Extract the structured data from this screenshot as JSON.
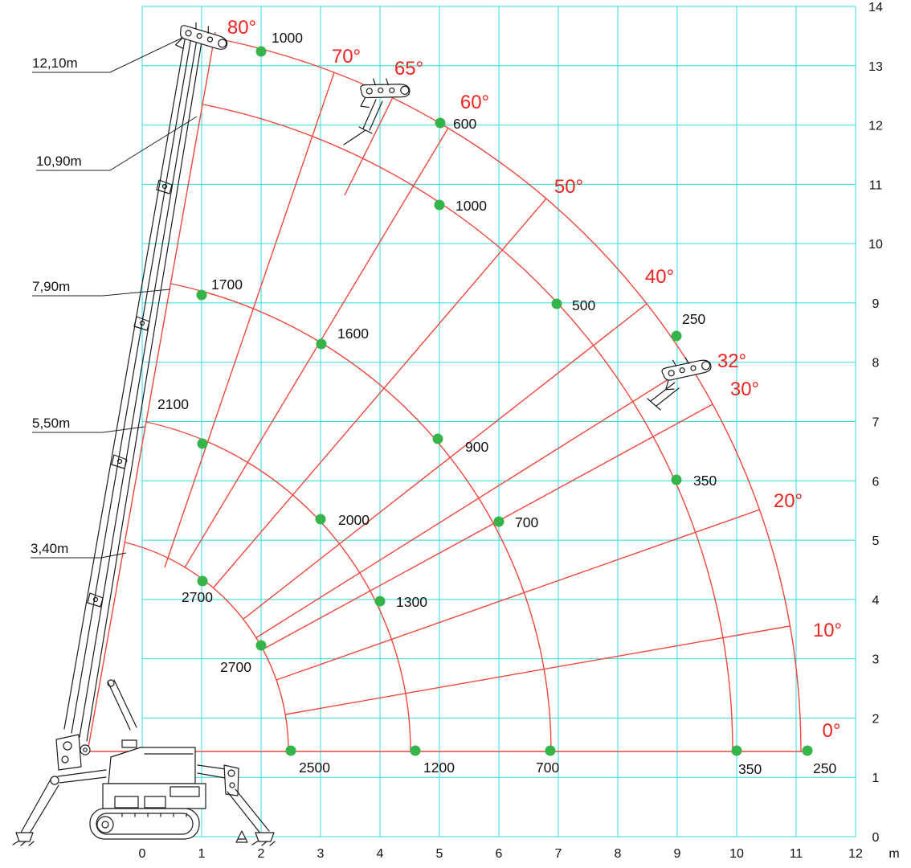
{
  "colors": {
    "grid": "#2edede",
    "rays": "#f0473d",
    "angle_text": "#ee2420",
    "points": "#35b44a",
    "text": "#111111",
    "background": "#ffffff"
  },
  "chart_data": {
    "type": "polar-load-chart",
    "description": "Spider crane working range / load chart: red arcs are boom extension lengths, red rays are boom angles, green points give rated load values; grid in metres",
    "x_axis": {
      "labels": [
        "0",
        "1",
        "2",
        "3",
        "4",
        "5",
        "6",
        "7",
        "8",
        "9",
        "10",
        "11",
        "12"
      ],
      "unit": "m",
      "range": [
        0,
        12
      ],
      "grid": true
    },
    "y_axis": {
      "labels": [
        "0",
        "1",
        "2",
        "3",
        "4",
        "5",
        "6",
        "7",
        "8",
        "9",
        "10",
        "11",
        "12",
        "13",
        "14"
      ],
      "range": [
        0,
        14
      ],
      "grid": true
    },
    "boom_labels": [
      "12,10m",
      "10,90m",
      "7,90m",
      "5,50m",
      "3,40m"
    ],
    "angle_labels": [
      "80°",
      "70°",
      "65°",
      "60°",
      "50°",
      "40°",
      "32°",
      "30°",
      "20°",
      "10°",
      "0°"
    ],
    "load_points": [
      {
        "value": "1000",
        "boom": "12,10m",
        "angle": "80°"
      },
      {
        "value": "600",
        "boom": "12,10m",
        "angle": "60°"
      },
      {
        "value": "250",
        "boom": "12,10m",
        "angle": "40°"
      },
      {
        "value": "250",
        "boom": "12,10m",
        "angle": "0°"
      },
      {
        "value": "1000",
        "boom": "10,90m",
        "angle": "60°"
      },
      {
        "value": "500",
        "boom": "10,90m",
        "angle": "40°"
      },
      {
        "value": "350",
        "boom": "10,90m",
        "angle": "30°"
      },
      {
        "value": "350",
        "boom": "10,90m",
        "angle": "0°"
      },
      {
        "value": "1700",
        "boom": "7,90m",
        "angle": "80°"
      },
      {
        "value": "1600",
        "boom": "7,90m",
        "angle": "60°"
      },
      {
        "value": "900",
        "boom": "7,90m",
        "angle": "40°"
      },
      {
        "value": "700",
        "boom": "7,90m",
        "angle": "30°"
      },
      {
        "value": "700",
        "boom": "7,90m",
        "angle": "0°"
      },
      {
        "value": "2100",
        "boom": "5,50m",
        "angle": "70°"
      },
      {
        "value": "2000",
        "boom": "5,50m",
        "angle": "50°"
      },
      {
        "value": "1300",
        "boom": "5,50m",
        "angle": "30°"
      },
      {
        "value": "1200",
        "boom": "5,50m",
        "angle": "0°"
      },
      {
        "value": "2700",
        "boom": "3,40m",
        "angle": "60°"
      },
      {
        "value": "2700",
        "boom": "3,40m",
        "angle": "30°"
      },
      {
        "value": "2500",
        "boom": "3,40m",
        "angle": "0°"
      }
    ]
  }
}
